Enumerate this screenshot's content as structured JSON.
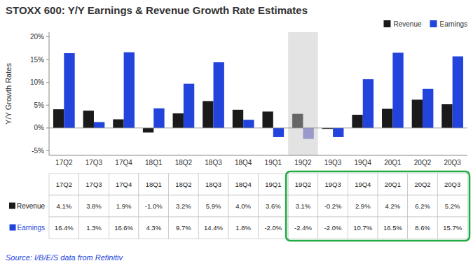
{
  "chart_data": {
    "type": "bar",
    "title": "STOXX 600: Y/Y Earnings & Revenue Growth Rate Estimates",
    "ylabel": "Y/Y Growth Rates",
    "source": "Source: I/B/E/S data from Refinitiv",
    "categories": [
      "17Q2",
      "17Q3",
      "17Q4",
      "18Q1",
      "18Q2",
      "18Q3",
      "18Q4",
      "19Q1",
      "19Q2",
      "19Q3",
      "19Q4",
      "20Q1",
      "20Q2",
      "20Q3"
    ],
    "series": [
      {
        "name": "Revenue",
        "color": "#1a1a1a",
        "colors": [
          "#1a1a1a",
          "#1a1a1a",
          "#1a1a1a",
          "#1a1a1a",
          "#1a1a1a",
          "#1a1a1a",
          "#1a1a1a",
          "#1a1a1a",
          "#666666",
          "#1a1a1a",
          "#1a1a1a",
          "#1a1a1a",
          "#1a1a1a",
          "#1a1a1a"
        ],
        "values": [
          4.1,
          3.8,
          1.9,
          -1.0,
          3.2,
          5.9,
          4.0,
          3.6,
          3.1,
          -0.2,
          2.9,
          4.2,
          6.2,
          5.2
        ],
        "value_labels": [
          "4.1%",
          "3.8%",
          "1.9%",
          "-1.0%",
          "3.2%",
          "5.9%",
          "4.0%",
          "3.6%",
          "3.1%",
          "-0.2%",
          "2.9%",
          "4.2%",
          "6.2%",
          "5.2%"
        ]
      },
      {
        "name": "Earnings",
        "color": "#2244dd",
        "colors": [
          "#2244dd",
          "#2244dd",
          "#2244dd",
          "#2244dd",
          "#2244dd",
          "#2244dd",
          "#2244dd",
          "#2244dd",
          "#9999cc",
          "#2244dd",
          "#2244dd",
          "#2244dd",
          "#2244dd",
          "#2244dd"
        ],
        "values": [
          16.4,
          1.3,
          16.6,
          4.3,
          9.7,
          14.4,
          1.8,
          -2.0,
          -2.4,
          -2.0,
          10.7,
          16.5,
          8.6,
          15.7
        ],
        "value_labels": [
          "16.4%",
          "1.3%",
          "16.6%",
          "4.3%",
          "9.7%",
          "14.4%",
          "1.8%",
          "-2.0%",
          "-2.4%",
          "-2.0%",
          "10.7%",
          "16.5%",
          "8.6%",
          "15.7%"
        ]
      }
    ],
    "ylim": [
      -6,
      21
    ],
    "yticks": [
      {
        "value": -5,
        "label": "-5%"
      },
      {
        "value": 0,
        "label": "0%"
      },
      {
        "value": 5,
        "label": "5%"
      },
      {
        "value": 10,
        "label": "10%"
      },
      {
        "value": 15,
        "label": "15%"
      },
      {
        "value": 20,
        "label": "20%"
      }
    ],
    "grid": false,
    "legend": "top-right",
    "data_labels": true
  }
}
